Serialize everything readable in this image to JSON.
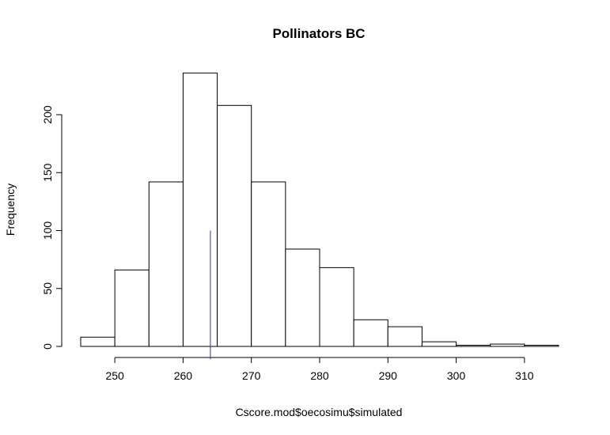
{
  "chart_data": {
    "type": "histogram",
    "title": "Pollinators BC",
    "xlabel": "Cscore.mod$oecosimu$simulated",
    "ylabel": "Frequency",
    "bins": [
      {
        "start": 245,
        "end": 250,
        "count": 8
      },
      {
        "start": 250,
        "end": 255,
        "count": 66
      },
      {
        "start": 255,
        "end": 260,
        "count": 142
      },
      {
        "start": 260,
        "end": 265,
        "count": 236
      },
      {
        "start": 265,
        "end": 270,
        "count": 208
      },
      {
        "start": 270,
        "end": 275,
        "count": 142
      },
      {
        "start": 275,
        "end": 280,
        "count": 84
      },
      {
        "start": 280,
        "end": 285,
        "count": 68
      },
      {
        "start": 285,
        "end": 290,
        "count": 23
      },
      {
        "start": 290,
        "end": 295,
        "count": 17
      },
      {
        "start": 295,
        "end": 300,
        "count": 4
      },
      {
        "start": 300,
        "end": 305,
        "count": 1
      },
      {
        "start": 305,
        "end": 310,
        "count": 2
      },
      {
        "start": 310,
        "end": 315,
        "count": 1
      }
    ],
    "xlim": [
      245,
      315
    ],
    "ylim": [
      0,
      240
    ],
    "x_ticks": [
      250,
      260,
      270,
      280,
      290,
      300,
      310
    ],
    "y_ticks": [
      0,
      50,
      100,
      150,
      200
    ],
    "observed_line": {
      "x": 264,
      "y_from": -11,
      "y_to": 100,
      "color": "#3333aa"
    },
    "grid": false
  }
}
